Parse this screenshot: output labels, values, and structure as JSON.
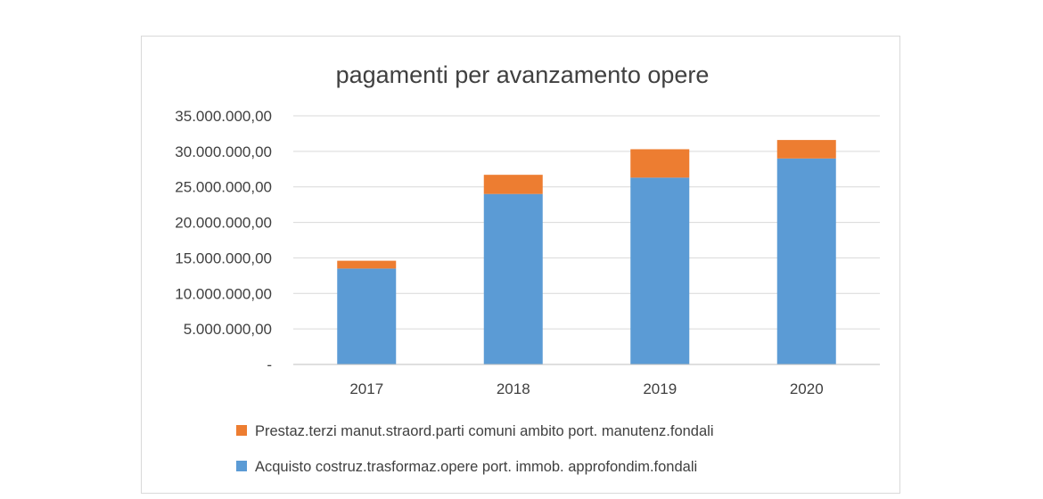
{
  "chart_data": {
    "type": "bar",
    "stacked": true,
    "title": "pagamenti per avanzamento opere",
    "categories": [
      "2017",
      "2018",
      "2019",
      "2020"
    ],
    "series": [
      {
        "name": "Acquisto costruz.trasformaz.opere port. immob. approfondim.fondali",
        "color": "#5b9bd5",
        "values": [
          13500000,
          24000000,
          26300000,
          29000000
        ]
      },
      {
        "name": "Prestaz.terzi manut.straord.parti comuni ambito port. manutenz.fondali",
        "color": "#ed7d31",
        "values": [
          1100000,
          2700000,
          4000000,
          2600000
        ]
      }
    ],
    "ylim": [
      0,
      35000000
    ],
    "yticks": [
      0,
      5000000,
      10000000,
      15000000,
      20000000,
      25000000,
      30000000,
      35000000
    ],
    "ytick_labels": [
      "-",
      "5.000.000,00",
      "10.000.000,00",
      "15.000.000,00",
      "20.000.000,00",
      "25.000.000,00",
      "30.000.000,00",
      "35.000.000,00"
    ],
    "grid": true,
    "legend_position": "bottom",
    "legend_order": [
      1,
      0
    ]
  }
}
